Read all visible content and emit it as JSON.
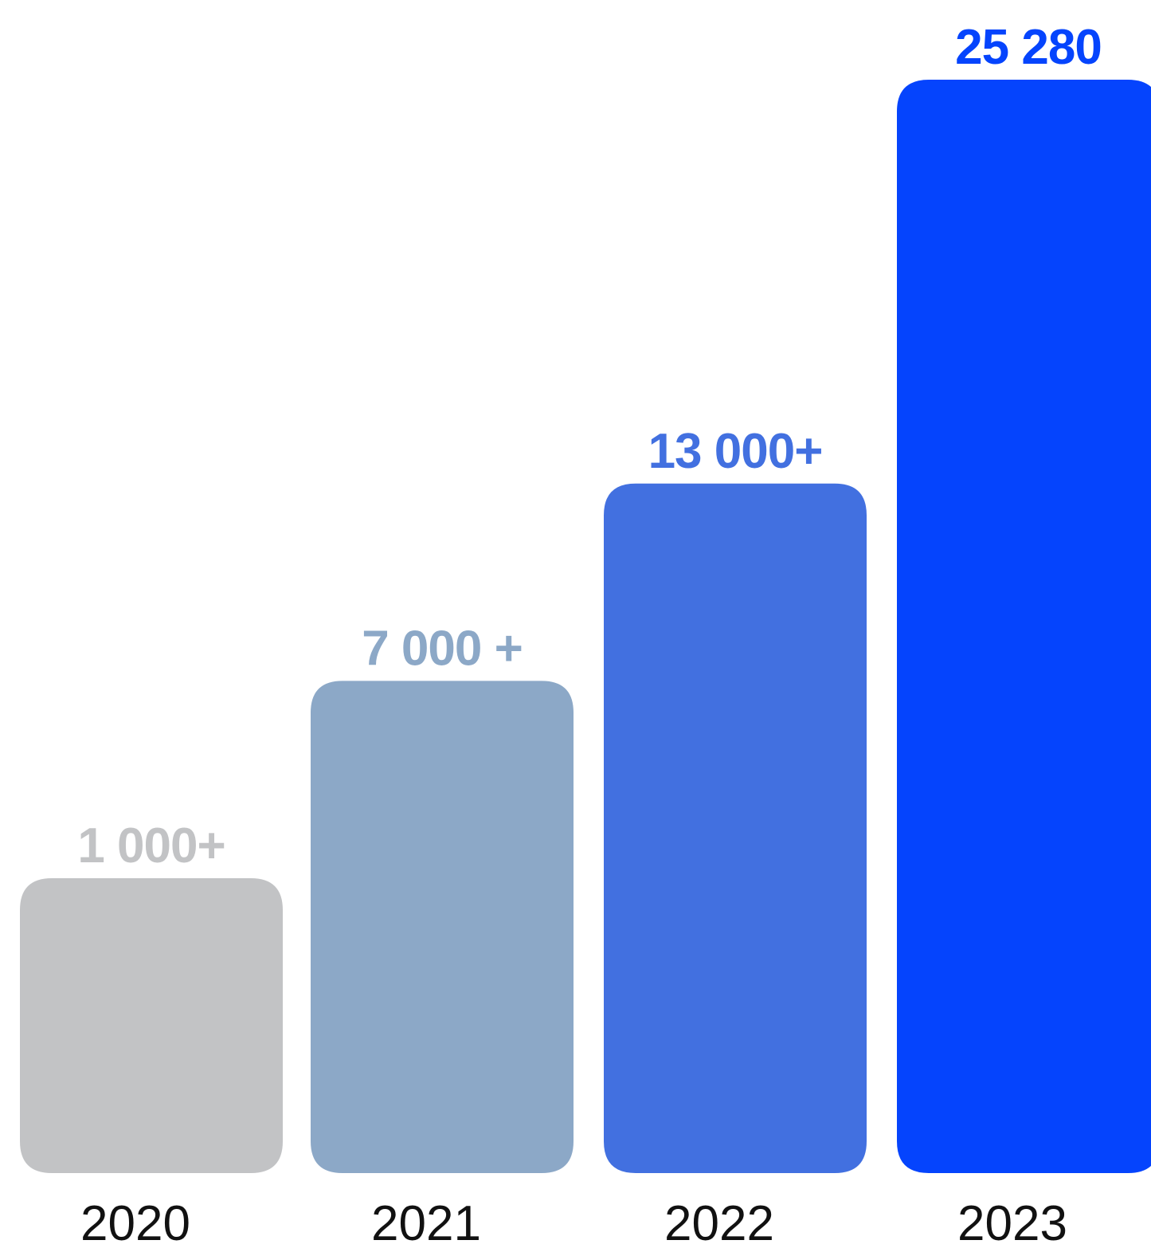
{
  "chart_data": {
    "type": "bar",
    "categories": [
      "2020",
      "2021",
      "2022",
      "2023"
    ],
    "values": [
      1000,
      7000,
      13000,
      25280
    ],
    "data_labels": [
      "1 000+",
      "7 000 +",
      "13 000+",
      "25 280"
    ],
    "colors": [
      "#c2c3c5",
      "#8ca8c7",
      "#4270e0",
      "#0544fd"
    ],
    "title": "",
    "xlabel": "",
    "ylabel": "",
    "ylim": [
      0,
      25280
    ],
    "grid": false,
    "legend": "none"
  }
}
